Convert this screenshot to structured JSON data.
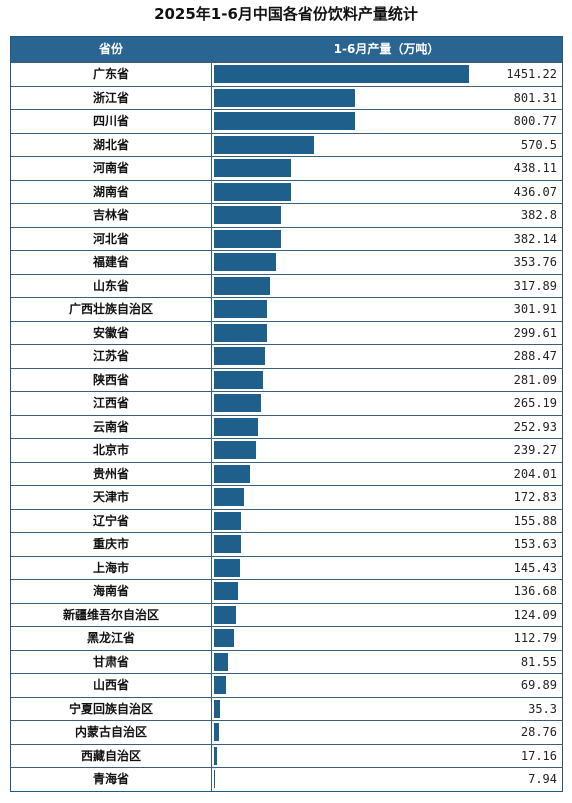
{
  "title": "2025年1-6月中国各省份饮料产量统计",
  "header": {
    "province": "省份",
    "value": "1-6月产量（万吨）"
  },
  "colors": {
    "header_bg": "#2a6591",
    "bar": "#1f5f8b"
  },
  "chart_data": {
    "type": "bar",
    "orientation": "horizontal",
    "categories": [
      "广东省",
      "浙江省",
      "四川省",
      "湖北省",
      "河南省",
      "湖南省",
      "吉林省",
      "河北省",
      "福建省",
      "山东省",
      "广西壮族自治区",
      "安徽省",
      "江苏省",
      "陕西省",
      "江西省",
      "云南省",
      "北京市",
      "贵州省",
      "天津市",
      "辽宁省",
      "重庆市",
      "上海市",
      "海南省",
      "新疆维吾尔自治区",
      "黑龙江省",
      "甘肃省",
      "山西省",
      "宁夏回族自治区",
      "内蒙古自治区",
      "西藏自治区",
      "青海省"
    ],
    "values": [
      1451.22,
      801.31,
      800.77,
      570.5,
      438.11,
      436.07,
      382.8,
      382.14,
      353.76,
      317.89,
      301.91,
      299.61,
      288.47,
      281.09,
      265.19,
      252.93,
      239.27,
      204.01,
      172.83,
      155.88,
      153.63,
      145.43,
      136.68,
      124.09,
      112.79,
      81.55,
      69.89,
      35.3,
      28.76,
      17.16,
      7.94
    ],
    "labels": [
      "1451.22",
      "801.31",
      "800.77",
      "570.5",
      "438.11",
      "436.07",
      "382.8",
      "382.14",
      "353.76",
      "317.89",
      "301.91",
      "299.61",
      "288.47",
      "281.09",
      "265.19",
      "252.93",
      "239.27",
      "204.01",
      "172.83",
      "155.88",
      "153.63",
      "145.43",
      "136.68",
      "124.09",
      "112.79",
      "81.55",
      "69.89",
      "35.3",
      "28.76",
      "17.16",
      "7.94"
    ],
    "title": "2025年1-6月中国各省份饮料产量统计",
    "xlabel": "",
    "ylabel": "",
    "xlim": [
      0,
      1451.22
    ]
  }
}
